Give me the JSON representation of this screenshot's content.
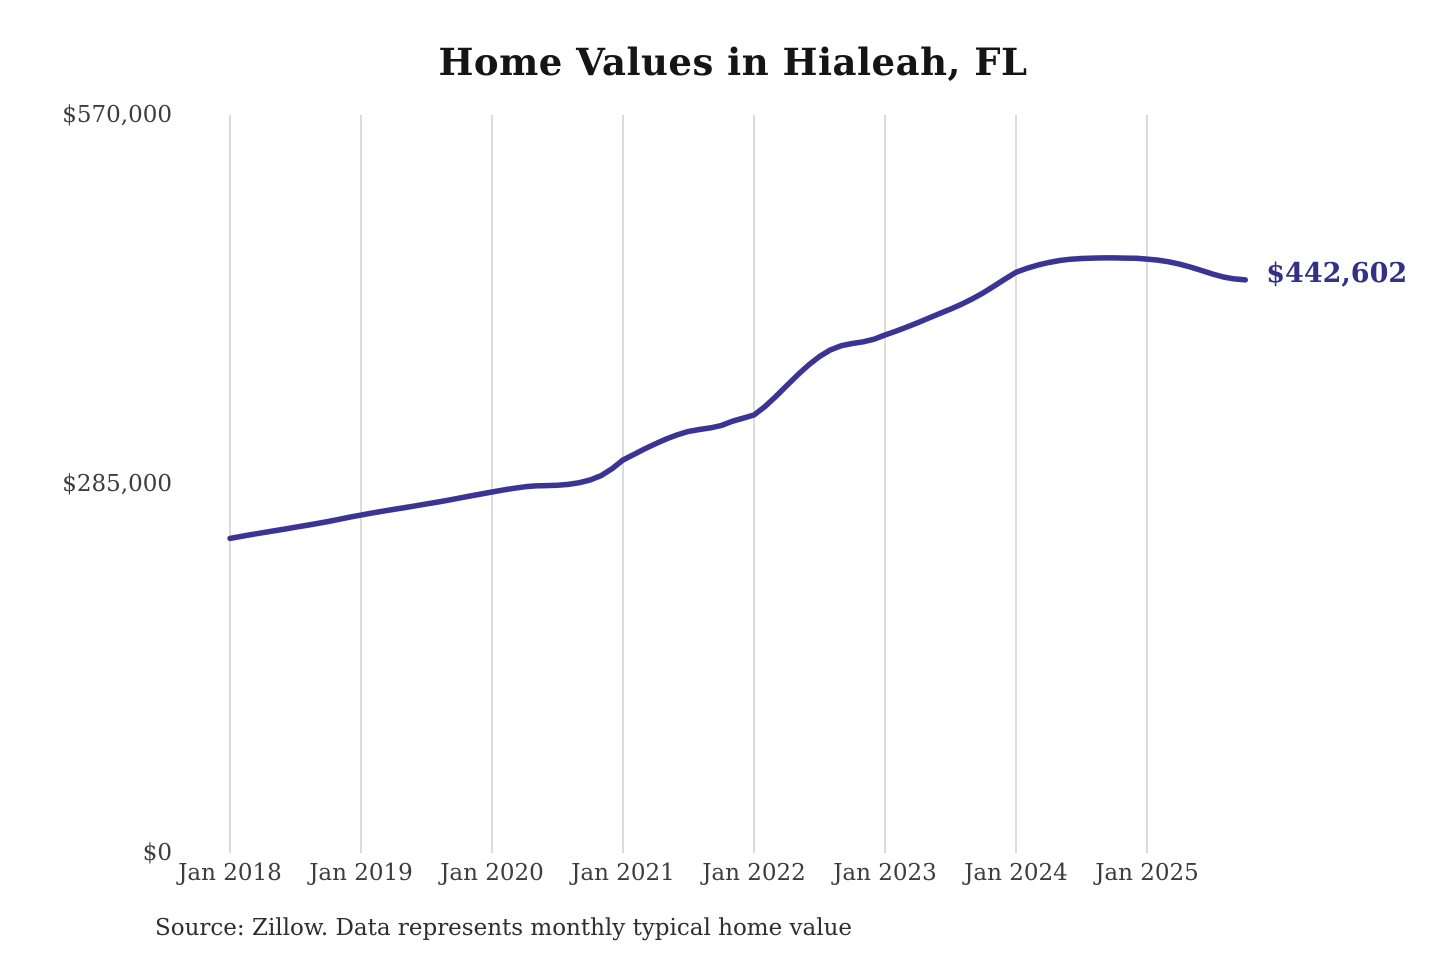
{
  "page": {
    "background_color": "#ffffff"
  },
  "chart": {
    "title": "Home Values in Hialeah, FL",
    "end_label": "$442,602",
    "source_note": "Source: Zillow. Data represents monthly typical home value",
    "colors": {
      "line": "#3b3494",
      "end_label": "#333087",
      "gridline": "#c9c9c9",
      "tick_label": "#3d3d3d",
      "title": "#151515"
    }
  },
  "chart_data": {
    "type": "line",
    "title": "Home Values in Hialeah, FL",
    "xlabel": "",
    "ylabel": "",
    "x_tick_labels": [
      "Jan 2018",
      "Jan 2019",
      "Jan 2020",
      "Jan 2021",
      "Jan 2022",
      "Jan 2023",
      "Jan 2024",
      "Jan 2025"
    ],
    "y_tick_labels": [
      "$0",
      "$285,000",
      "$570,000"
    ],
    "y_tick_values": [
      0,
      285000,
      570000
    ],
    "ylim": [
      0,
      570000
    ],
    "grid": "vertical-only",
    "legend": "none",
    "points_per_year": 12,
    "series": [
      {
        "name": "Monthly typical home value",
        "start_label": "Jan 2018",
        "final_value": 442602,
        "final_value_label": "$442,602",
        "values": [
          243000,
          244500,
          246000,
          247400,
          248800,
          250200,
          251600,
          253000,
          254500,
          256000,
          257700,
          259400,
          261000,
          262500,
          264000,
          265400,
          266800,
          268200,
          269600,
          271000,
          272500,
          274100,
          275700,
          277300,
          278800,
          280300,
          281700,
          282800,
          283500,
          283800,
          284000,
          284700,
          286000,
          288200,
          291500,
          296800,
          303500,
          307900,
          312200,
          316200,
          319900,
          323100,
          325600,
          327100,
          328300,
          330200,
          333400,
          335800,
          338300,
          344800,
          352600,
          361000,
          369300,
          376900,
          383500,
          388600,
          391800,
          393500,
          394800,
          396800,
          400100,
          403000,
          406200,
          409600,
          413100,
          416600,
          420100,
          423800,
          428000,
          432700,
          437900,
          443300,
          448500,
          451600,
          454100,
          456100,
          457600,
          458600,
          459200,
          459500,
          459600,
          459600,
          459500,
          459300,
          458700,
          457900,
          456600,
          454800,
          452500,
          449900,
          447200,
          444900,
          443400,
          442602
        ]
      }
    ]
  }
}
